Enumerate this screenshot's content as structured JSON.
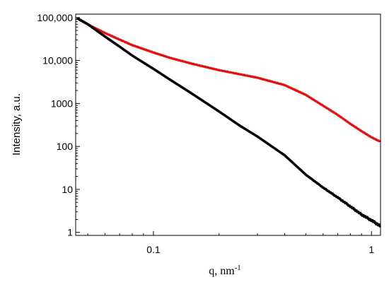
{
  "chart_data": {
    "type": "scatter",
    "title": "",
    "xlabel": "q, nm",
    "xlabel_superscript": "-1",
    "ylabel": "Intensity, a.u.",
    "x_scale": "log",
    "y_scale": "log",
    "xlim": [
      0.044,
      1.1
    ],
    "ylim": [
      0.85,
      120000
    ],
    "x_ticks": [
      {
        "value": 0.1,
        "label": "0.1"
      },
      {
        "value": 1,
        "label": "1"
      }
    ],
    "y_ticks": [
      {
        "value": 1,
        "label": "1"
      },
      {
        "value": 10,
        "label": "10"
      },
      {
        "value": 100,
        "label": "100"
      },
      {
        "value": 1000,
        "label": "1000"
      },
      {
        "value": 10000,
        "label": "10,000"
      },
      {
        "value": 100000,
        "label": "100,000"
      }
    ],
    "grid": false,
    "legend": "none",
    "series": [
      {
        "color": "#dd1111",
        "marker": "triangle",
        "points": [
          [
            0.045,
            95000
          ],
          [
            0.05,
            70000
          ],
          [
            0.06,
            44000
          ],
          [
            0.07,
            31000
          ],
          [
            0.08,
            23000
          ],
          [
            0.1,
            15500
          ],
          [
            0.12,
            11500
          ],
          [
            0.15,
            8500
          ],
          [
            0.2,
            6000
          ],
          [
            0.25,
            4800
          ],
          [
            0.3,
            4000
          ],
          [
            0.4,
            2700
          ],
          [
            0.5,
            1600
          ],
          [
            0.6,
            900
          ],
          [
            0.7,
            550
          ],
          [
            0.8,
            340
          ],
          [
            0.9,
            230
          ],
          [
            1.0,
            165
          ],
          [
            1.1,
            130
          ]
        ]
      },
      {
        "color": "#000000",
        "marker": "circle",
        "points": [
          [
            0.045,
            95000
          ],
          [
            0.05,
            70000
          ],
          [
            0.06,
            36000
          ],
          [
            0.07,
            21000
          ],
          [
            0.08,
            13000
          ],
          [
            0.1,
            6400
          ],
          [
            0.12,
            3500
          ],
          [
            0.15,
            1700
          ],
          [
            0.2,
            650
          ],
          [
            0.25,
            300
          ],
          [
            0.3,
            170
          ],
          [
            0.4,
            62
          ],
          [
            0.5,
            22
          ],
          [
            0.6,
            11
          ],
          [
            0.7,
            6.5
          ],
          [
            0.8,
            4.0
          ],
          [
            0.9,
            2.6
          ],
          [
            1.0,
            1.9
          ],
          [
            1.1,
            1.4
          ]
        ]
      }
    ]
  }
}
